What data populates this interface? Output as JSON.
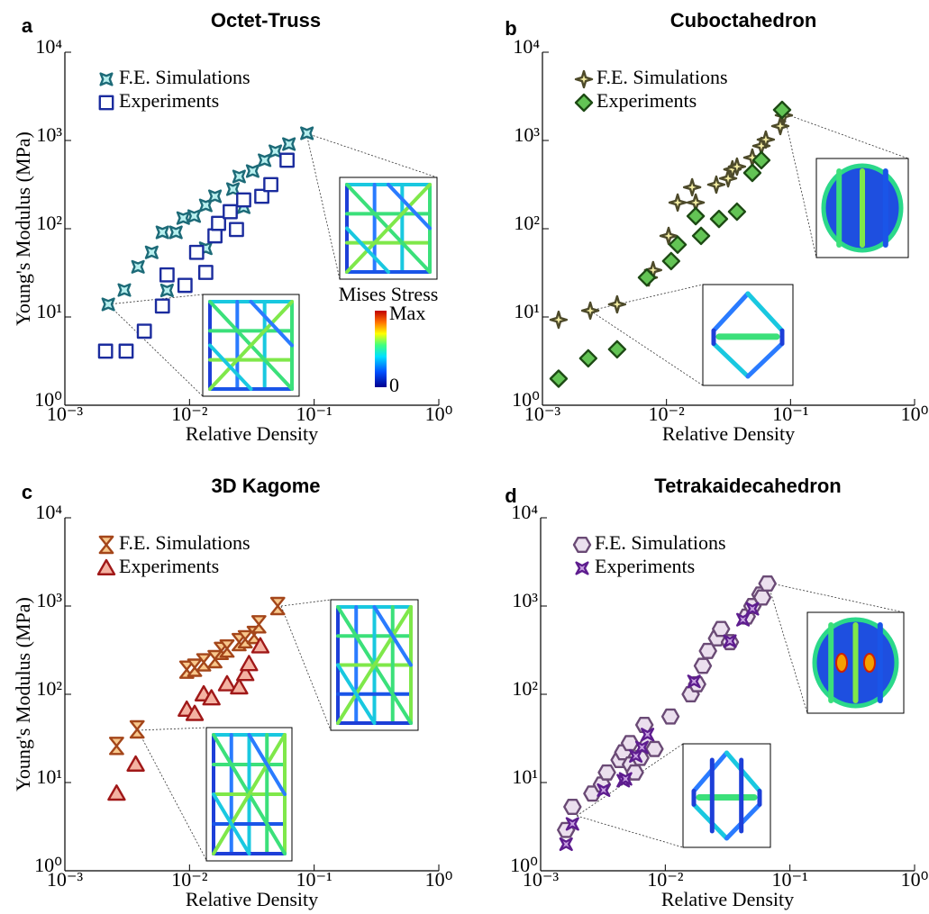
{
  "chart_data": [
    {
      "type": "scatter",
      "label": "a",
      "title": "Octet-Truss",
      "xlabel": "Relative Density",
      "ylabel": "Young's Modulus (MPa)",
      "xscale": "log",
      "yscale": "log",
      "xlim": [
        0.001,
        1
      ],
      "ylim": [
        1,
        10000
      ],
      "xticks": [
        {
          "value": 0.001,
          "label": "10⁻³"
        },
        {
          "value": 0.01,
          "label": "10⁻²"
        },
        {
          "value": 0.1,
          "label": "10⁻¹"
        },
        {
          "value": 1,
          "label": "10⁰"
        }
      ],
      "yticks": [
        {
          "value": 1,
          "label": "10⁰"
        },
        {
          "value": 10,
          "label": "10¹"
        },
        {
          "value": 100,
          "label": "10²"
        },
        {
          "value": 1000,
          "label": "10³"
        },
        {
          "value": 10000,
          "label": "10⁴"
        }
      ],
      "legend": "upper left",
      "colorbar": {
        "title": "Mises Stress",
        "max_label": "Max",
        "min_label": "0"
      },
      "series": [
        {
          "name": "F.E. Simulations",
          "marker": "astroid",
          "color": "#b8f0ef",
          "edgecolor": "#1d6b78",
          "x": [
            0.00223,
            0.003,
            0.00386,
            0.00497,
            0.00606,
            0.0066,
            0.00778,
            0.0089,
            0.0109,
            0.0135,
            0.0135,
            0.016,
            0.0223,
            0.025,
            0.0272,
            0.0321,
            0.04,
            0.0488,
            0.0627,
            0.0875
          ],
          "y": [
            13.9,
            20.2,
            37,
            54,
            91,
            20,
            91,
            132,
            139,
            60,
            184,
            233,
            281,
            391,
            175,
            450,
            597,
            755,
            910,
            1207
          ]
        },
        {
          "name": "Experiments",
          "marker": "square",
          "color": "#ffffff",
          "edgecolor": "#1b2c9e",
          "x": [
            0.00212,
            0.0031,
            0.00434,
            0.00606,
            0.0066,
            0.0092,
            0.0114,
            0.0135,
            0.016,
            0.0171,
            0.0212,
            0.0238,
            0.0272,
            0.038,
            0.0449,
            0.0606
          ],
          "y": [
            4.1,
            4.1,
            6.9,
            13.3,
            30,
            22.8,
            54,
            32,
            83,
            115,
            156,
            98,
            212,
            233,
            316,
            597
          ]
        }
      ]
    },
    {
      "type": "scatter",
      "label": "b",
      "title": "Cuboctahedron",
      "xlabel": "Relative Density",
      "xscale": "log",
      "yscale": "log",
      "xlim": [
        0.001,
        1
      ],
      "ylim": [
        1,
        10000
      ],
      "xticks": [
        {
          "value": 0.001,
          "label": "10⁻³"
        },
        {
          "value": 0.01,
          "label": "10⁻²"
        },
        {
          "value": 0.1,
          "label": "10⁻¹"
        },
        {
          "value": 1,
          "label": "10⁰"
        }
      ],
      "yticks": [
        {
          "value": 1,
          "label": "10⁰"
        },
        {
          "value": 10,
          "label": "10¹"
        },
        {
          "value": 100,
          "label": "10²"
        },
        {
          "value": 1000,
          "label": "10³"
        },
        {
          "value": 10000,
          "label": "10⁴"
        }
      ],
      "legend": "upper left",
      "series": [
        {
          "name": "F.E. Simulations",
          "marker": "cross",
          "color": "#f2eca2",
          "edgecolor": "#4d4a2a",
          "x": [
            0.00135,
            0.00243,
            0.004,
            0.0072,
            0.0078,
            0.0104,
            0.0123,
            0.0161,
            0.0172,
            0.0252,
            0.0314,
            0.034,
            0.037,
            0.0492,
            0.0582,
            0.0632,
            0.0827,
            0.0884
          ],
          "y": [
            9.3,
            11.8,
            13.9,
            28,
            34,
            83,
            198,
            295,
            198,
            316,
            372,
            471,
            506,
            640,
            868,
            1024,
            1456,
            1931
          ]
        },
        {
          "name": "Experiments",
          "marker": "diamond",
          "color": "#63c455",
          "edgecolor": "#1d4a14",
          "x": [
            0.00135,
            0.00234,
            0.004,
            0.00695,
            0.0109,
            0.0123,
            0.0172,
            0.019,
            0.0265,
            0.037,
            0.0492,
            0.0582,
            0.0855
          ],
          "y": [
            2.0,
            3.4,
            4.3,
            28,
            43,
            66,
            139,
            83,
            129,
            156,
            429,
            597,
            2222
          ]
        }
      ]
    },
    {
      "type": "scatter",
      "label": "c",
      "title": "3D Kagome",
      "xlabel": "Relative Density",
      "ylabel": "Young's Modulus (MPa)",
      "xscale": "log",
      "yscale": "log",
      "xlim": [
        0.001,
        1
      ],
      "ylim": [
        1,
        10000
      ],
      "xticks": [
        {
          "value": 0.001,
          "label": "10⁻³"
        },
        {
          "value": 0.01,
          "label": "10⁻²"
        },
        {
          "value": 0.1,
          "label": "10⁻¹"
        },
        {
          "value": 1,
          "label": "10⁰"
        }
      ],
      "yticks": [
        {
          "value": 1,
          "label": "10⁰"
        },
        {
          "value": 10,
          "label": "10¹"
        },
        {
          "value": 100,
          "label": "10²"
        },
        {
          "value": 1000,
          "label": "10³"
        },
        {
          "value": 10000,
          "label": "10⁴"
        }
      ],
      "legend": "upper left",
      "series": [
        {
          "name": "F.E. Simulations",
          "marker": "hourglass",
          "color": "#f8c88c",
          "edgecolor": "#a4461a",
          "x": [
            0.0026,
            0.0038,
            0.0095,
            0.011,
            0.013,
            0.016,
            0.018,
            0.02,
            0.025,
            0.028,
            0.033,
            0.036,
            0.051
          ],
          "y": [
            26,
            40,
            190,
            200,
            230,
            250,
            310,
            330,
            390,
            420,
            470,
            620,
            1000
          ]
        },
        {
          "name": "Experiments",
          "marker": "triangle",
          "color": "#f4b2a2",
          "edgecolor": "#a01818",
          "x": [
            0.0026,
            0.0037,
            0.0095,
            0.011,
            0.013,
            0.015,
            0.02,
            0.025,
            0.028,
            0.03,
            0.037
          ],
          "y": [
            7.5,
            16,
            67,
            60,
            100,
            90,
            130,
            120,
            170,
            220,
            350
          ]
        }
      ]
    },
    {
      "type": "scatter",
      "label": "d",
      "title": "Tetrakaidecahedron",
      "xlabel": "Relative Density",
      "xscale": "log",
      "yscale": "log",
      "xlim": [
        0.001,
        1
      ],
      "ylim": [
        1,
        10000
      ],
      "xticks": [
        {
          "value": 0.001,
          "label": "10⁻³"
        },
        {
          "value": 0.01,
          "label": "10⁻²"
        },
        {
          "value": 0.1,
          "label": "10⁻¹"
        },
        {
          "value": 1,
          "label": "10⁰"
        }
      ],
      "yticks": [
        {
          "value": 1,
          "label": "10⁰"
        },
        {
          "value": 10,
          "label": "10¹"
        },
        {
          "value": 100,
          "label": "10²"
        },
        {
          "value": 1000,
          "label": "10³"
        },
        {
          "value": 10000,
          "label": "10⁴"
        }
      ],
      "legend": "upper left",
      "series": [
        {
          "name": "F.E. Simulations",
          "marker": "hexagon",
          "color": "#ebdfee",
          "edgecolor": "#6a4a75",
          "x": [
            0.0016,
            0.0018,
            0.0026,
            0.0031,
            0.0034,
            0.0043,
            0.0046,
            0.0052,
            0.0053,
            0.0057,
            0.0063,
            0.0068,
            0.0072,
            0.0082,
            0.011,
            0.016,
            0.018,
            0.02,
            0.022,
            0.026,
            0.028,
            0.033,
            0.045,
            0.05,
            0.058,
            0.06,
            0.066
          ],
          "y": [
            2.9,
            5.3,
            7.5,
            9.5,
            13,
            18,
            22,
            28,
            16,
            13,
            19,
            45,
            27,
            24,
            56,
            100,
            130,
            210,
            310,
            430,
            550,
            390,
            760,
            1000,
            1350,
            1250,
            1800
          ]
        },
        {
          "name": "Experiments",
          "marker": "star4",
          "color": "#c9a2e2",
          "edgecolor": "#5e1d8f",
          "x": [
            0.0016,
            0.0018,
            0.0032,
            0.0046,
            0.0048,
            0.0058,
            0.0065,
            0.0072,
            0.017,
            0.033,
            0.042,
            0.05
          ],
          "y": [
            2.0,
            3.4,
            8.2,
            10.5,
            11,
            20,
            25,
            35,
            140,
            400,
            700,
            930
          ]
        }
      ]
    }
  ]
}
